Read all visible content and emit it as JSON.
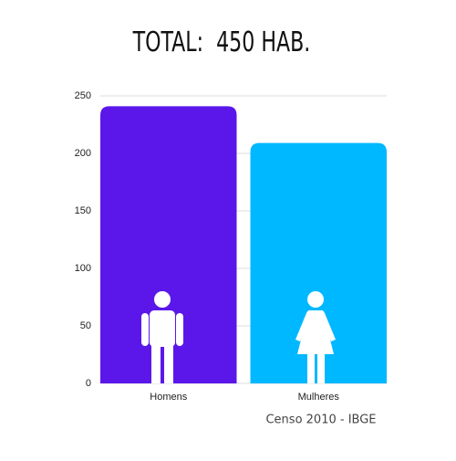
{
  "chart_data": {
    "type": "bar",
    "title": "TOTAL:  450 HAB.",
    "source": "Censo 2010 - IBGE",
    "categories": [
      "Homens",
      "Mulheres"
    ],
    "values": [
      241,
      209
    ],
    "colors": [
      "#5b17ea",
      "#00b8ff"
    ],
    "ylim": [
      0,
      250
    ],
    "yticks": [
      0,
      50,
      100,
      150,
      200,
      250
    ],
    "grid": true
  }
}
